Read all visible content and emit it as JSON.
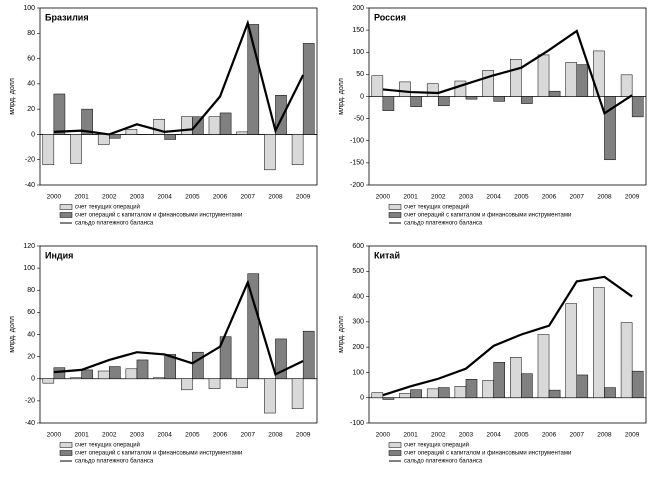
{
  "chart_data": [
    {
      "type": "bar",
      "title": "Бразилия",
      "y_label": "млрд. долл",
      "categories": [
        "2000",
        "2001",
        "2002",
        "2003",
        "2004",
        "2005",
        "2006",
        "2007",
        "2008",
        "2009"
      ],
      "series": [
        {
          "name": "счет текущих операций",
          "color": "#d9d9d9",
          "values": [
            -24,
            -23,
            -8,
            4,
            12,
            14,
            14,
            2,
            -28,
            -24
          ]
        },
        {
          "name": "счет операций с капиталом и финансовыми инструментами",
          "color": "#808080",
          "values": [
            32,
            20,
            -3,
            0,
            -4,
            14,
            17,
            87,
            31,
            72
          ]
        },
        {
          "name": "сальдо платежного баланса",
          "color": "#000000",
          "type": "line",
          "values": [
            2,
            3,
            0,
            8,
            2,
            4,
            30,
            88,
            3,
            47
          ]
        }
      ],
      "ylim": [
        -40,
        100
      ],
      "yticks": [
        -40,
        -20,
        0,
        20,
        40,
        60,
        80,
        100
      ]
    },
    {
      "type": "bar",
      "title": "Россия",
      "y_label": "млрд. долл",
      "categories": [
        "2000",
        "2001",
        "2002",
        "2003",
        "2004",
        "2005",
        "2006",
        "2007",
        "2008",
        "2009"
      ],
      "series": [
        {
          "name": "счет текущих операций",
          "color": "#d9d9d9",
          "values": [
            47,
            33,
            29,
            35,
            59,
            84,
            94,
            77,
            103,
            49
          ]
        },
        {
          "name": "счет операций с капиталом и финансовыми инструментами",
          "color": "#808080",
          "values": [
            -32,
            -23,
            -21,
            -6,
            -11,
            -16,
            12,
            72,
            -143,
            -46
          ]
        },
        {
          "name": "сальдо платежного баланса",
          "color": "#000000",
          "type": "line",
          "values": [
            16,
            10,
            8,
            28,
            48,
            65,
            105,
            148,
            -38,
            3
          ]
        }
      ],
      "ylim": [
        -200,
        200
      ],
      "yticks": [
        -200,
        -150,
        -100,
        -50,
        0,
        50,
        100,
        150,
        200
      ]
    },
    {
      "type": "bar",
      "title": "Индия",
      "y_label": "млрд. долл",
      "categories": [
        "2000",
        "2001",
        "2002",
        "2003",
        "2004",
        "2005",
        "2006",
        "2007",
        "2008",
        "2009"
      ],
      "series": [
        {
          "name": "счет текущих операций",
          "color": "#d9d9d9",
          "values": [
            -4,
            1,
            7,
            9,
            1,
            -10,
            -9,
            -8,
            -31,
            -27
          ]
        },
        {
          "name": "счет операций с капиталом и финансовыми инструментами",
          "color": "#808080",
          "values": [
            10,
            8,
            11,
            17,
            22,
            24,
            38,
            95,
            36,
            43
          ]
        },
        {
          "name": "сальдо платежного баланса",
          "color": "#000000",
          "type": "line",
          "values": [
            6,
            8,
            17,
            24,
            22,
            14,
            29,
            87,
            4,
            16
          ]
        }
      ],
      "ylim": [
        -40,
        120
      ],
      "yticks": [
        -40,
        -20,
        0,
        20,
        40,
        60,
        80,
        100,
        120
      ]
    },
    {
      "type": "bar",
      "title": "Китай",
      "y_label": "млрд. долл",
      "categories": [
        "2000",
        "2001",
        "2002",
        "2003",
        "2004",
        "2005",
        "2006",
        "2007",
        "2008",
        "2009"
      ],
      "series": [
        {
          "name": "счет текущих операций",
          "color": "#d9d9d9",
          "values": [
            20,
            17,
            35,
            45,
            68,
            160,
            250,
            372,
            436,
            297
          ]
        },
        {
          "name": "счет операций с капиталом и финансовыми инструментами",
          "color": "#808080",
          "values": [
            -7,
            32,
            40,
            73,
            140,
            95,
            30,
            90,
            40,
            105
          ]
        },
        {
          "name": "сальдо платежного баланса",
          "color": "#000000",
          "type": "line",
          "values": [
            10,
            45,
            75,
            115,
            205,
            250,
            285,
            460,
            478,
            400
          ]
        }
      ],
      "ylim": [
        -100,
        600
      ],
      "yticks": [
        -100,
        0,
        100,
        200,
        300,
        400,
        500,
        600
      ]
    }
  ]
}
